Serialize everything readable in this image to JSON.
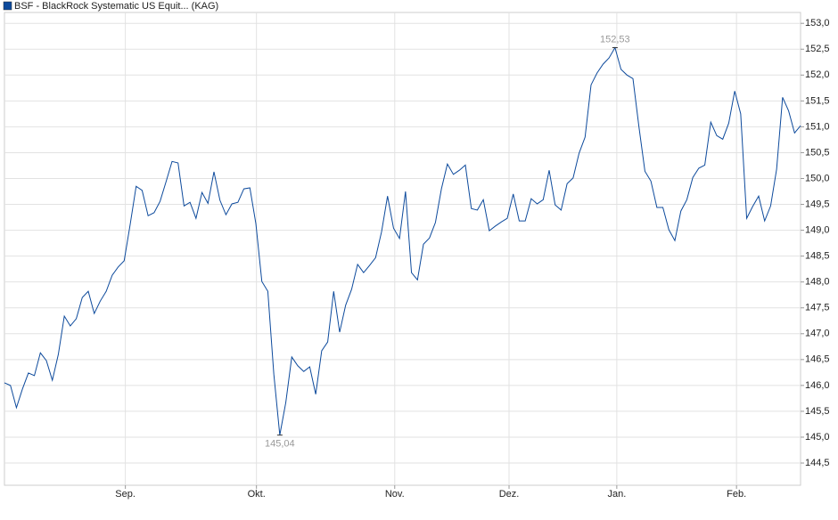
{
  "chart_data": {
    "type": "line",
    "legend": "top-left",
    "grid": true,
    "xlim": [
      0,
      133
    ],
    "xticks": [
      {
        "value": 20.2,
        "label": "Sep."
      },
      {
        "value": 42.1,
        "label": "Okt."
      },
      {
        "value": 65.2,
        "label": "Nov."
      },
      {
        "value": 84.3,
        "label": "Dez."
      },
      {
        "value": 102.3,
        "label": "Jan."
      },
      {
        "value": 122.3,
        "label": "Feb."
      }
    ],
    "ylim": [
      144.07,
      153.21
    ],
    "yticks": [
      {
        "value": 144.5,
        "label": "144,5"
      },
      {
        "value": 145,
        "label": "145,0"
      },
      {
        "value": 145.5,
        "label": "145,5"
      },
      {
        "value": 146,
        "label": "146,0"
      },
      {
        "value": 146.5,
        "label": "146,5"
      },
      {
        "value": 147,
        "label": "147,0"
      },
      {
        "value": 147.5,
        "label": "147,5"
      },
      {
        "value": 148,
        "label": "148,0"
      },
      {
        "value": 148.5,
        "label": "148,5"
      },
      {
        "value": 149,
        "label": "149,0"
      },
      {
        "value": 149.5,
        "label": "149,5"
      },
      {
        "value": 150,
        "label": "150,0"
      },
      {
        "value": 150.5,
        "label": "150,5"
      },
      {
        "value": 151,
        "label": "151,0"
      },
      {
        "value": 151.5,
        "label": "151,5"
      },
      {
        "value": 152,
        "label": "152,0"
      },
      {
        "value": 152.5,
        "label": "152,5"
      },
      {
        "value": 153,
        "label": "153,0"
      }
    ],
    "series": [
      {
        "name": "BSF - BlackRock Systematic US Equit... (KAG)",
        "color": "#0d4a9c",
        "values": [
          146.05,
          146.0,
          145.57,
          145.93,
          146.24,
          146.19,
          146.63,
          146.48,
          146.1,
          146.6,
          147.34,
          147.15,
          147.29,
          147.7,
          147.82,
          147.39,
          147.63,
          147.82,
          148.13,
          148.29,
          148.41,
          149.11,
          149.85,
          149.77,
          149.28,
          149.34,
          149.56,
          149.94,
          150.33,
          150.3,
          149.47,
          149.54,
          149.23,
          149.73,
          149.52,
          150.13,
          149.58,
          149.3,
          149.51,
          149.54,
          149.8,
          149.82,
          149.13,
          148.01,
          147.82,
          146.22,
          145.04,
          145.67,
          146.55,
          146.38,
          146.27,
          146.36,
          145.83,
          146.67,
          146.84,
          147.82,
          147.03,
          147.55,
          147.86,
          148.34,
          148.18,
          148.32,
          148.47,
          148.97,
          149.66,
          149.04,
          148.84,
          149.75,
          148.18,
          148.04,
          148.73,
          148.85,
          149.15,
          149.8,
          150.28,
          150.08,
          150.16,
          150.26,
          149.42,
          149.39,
          149.59,
          148.99,
          149.08,
          149.16,
          149.23,
          149.7,
          149.18,
          149.18,
          149.61,
          149.51,
          149.59,
          150.16,
          149.49,
          149.39,
          149.9,
          150.01,
          150.49,
          150.8,
          151.81,
          152.04,
          152.21,
          152.33,
          152.53,
          152.11,
          152.0,
          151.93,
          151.0,
          150.14,
          149.95,
          149.44,
          149.44,
          149.01,
          148.8,
          149.37,
          149.59,
          150.02,
          150.2,
          150.26,
          151.09,
          150.83,
          150.76,
          151.07,
          151.69,
          151.25,
          149.23,
          149.46,
          149.66,
          149.18,
          149.47,
          150.18,
          151.57,
          151.31,
          150.88,
          151.02
        ],
        "value_labels": [
          null,
          null,
          null,
          null,
          null,
          null,
          null,
          null,
          null,
          null,
          null,
          null,
          null,
          null,
          null,
          null,
          null,
          null,
          null,
          null,
          null,
          null,
          null,
          null,
          null,
          null,
          null,
          null,
          null,
          null,
          null,
          null,
          null,
          null,
          null,
          null,
          null,
          null,
          null,
          null,
          null,
          null,
          null,
          null,
          null,
          null,
          "145,04",
          null,
          null,
          null,
          null,
          null,
          null,
          null,
          null,
          null,
          null,
          null,
          null,
          null,
          null,
          null,
          null,
          null,
          null,
          null,
          null,
          null,
          null,
          null,
          null,
          null,
          null,
          null,
          null,
          null,
          null,
          null,
          null,
          null,
          null,
          null,
          null,
          null,
          null,
          null,
          null,
          null,
          null,
          null,
          null,
          null,
          null,
          null,
          null,
          null,
          null,
          null,
          null,
          null,
          null,
          null,
          "152,53",
          null,
          null,
          null,
          null,
          null,
          null,
          null,
          null,
          null,
          null,
          null,
          null,
          null,
          null,
          null,
          null,
          null,
          null,
          null,
          null,
          null,
          null,
          null,
          null,
          null,
          null,
          null,
          null,
          null,
          null,
          null
        ]
      }
    ]
  }
}
